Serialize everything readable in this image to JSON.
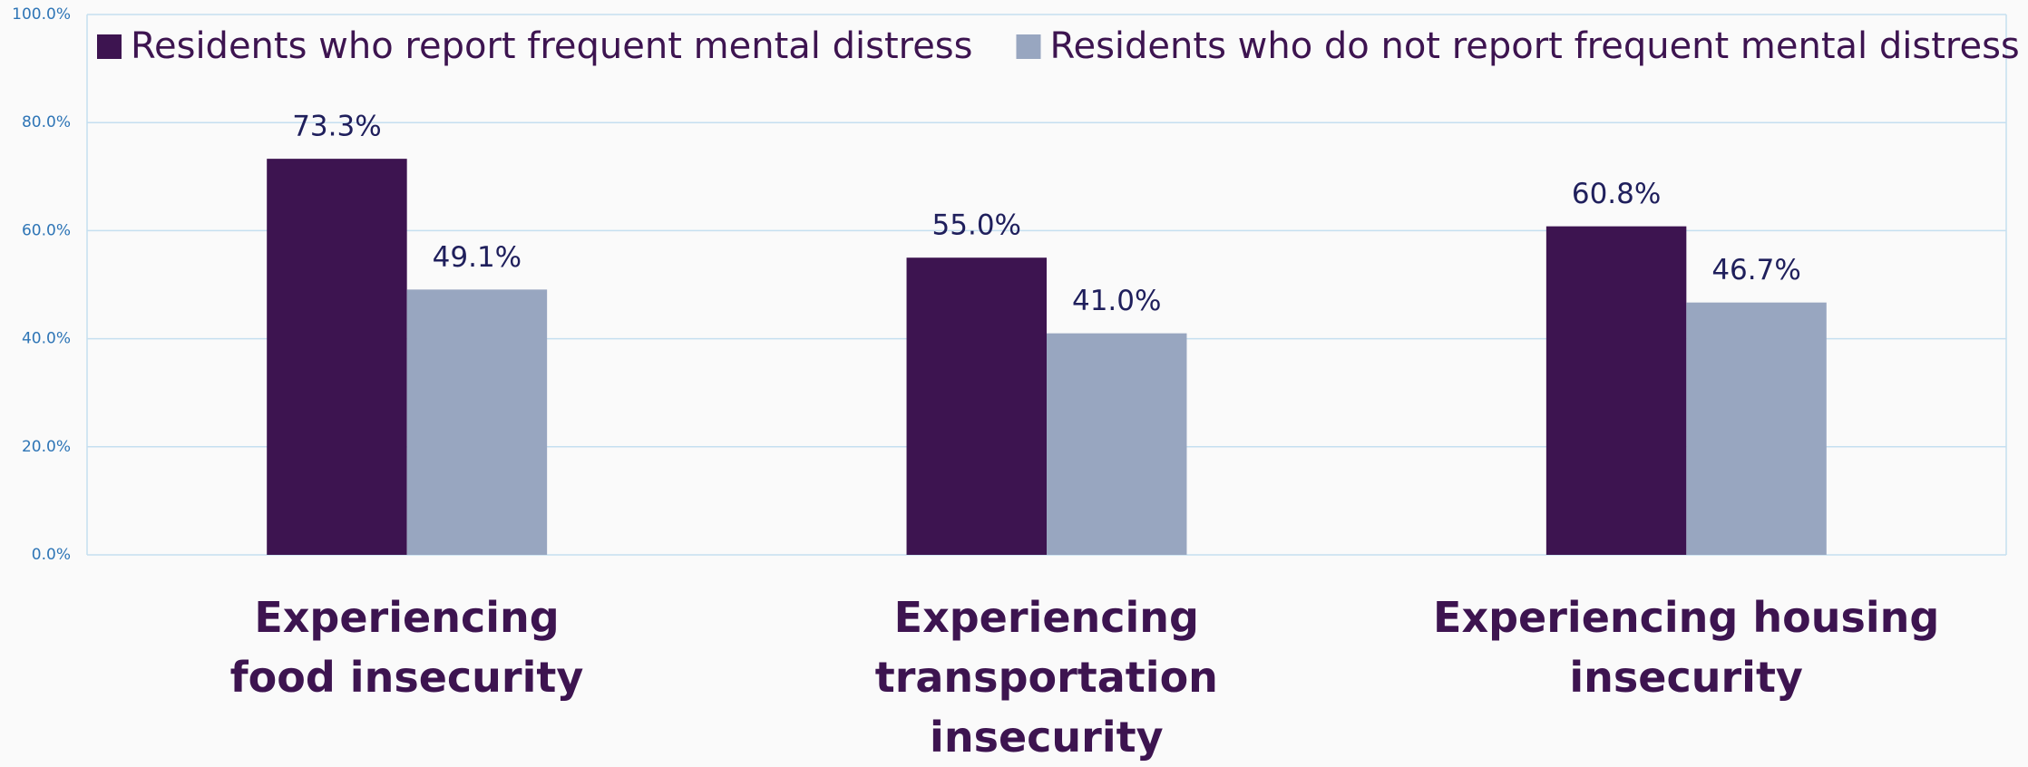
{
  "chart_data": {
    "type": "bar",
    "categories": [
      "Experiencing\nfood insecurity",
      "Experiencing transportation\ninsecurity",
      "Experiencing housing insecurity"
    ],
    "series": [
      {
        "name": "Residents who report frequent mental distress",
        "color": "#3d1450",
        "values": [
          73.3,
          55.0,
          60.8
        ],
        "value_labels": [
          "73.3%",
          "55.0%",
          "60.8%"
        ]
      },
      {
        "name": "Residents who do not report frequent mental distress",
        "color": "#98a6c0",
        "values": [
          49.1,
          41.0,
          46.7
        ],
        "value_labels": [
          "49.1%",
          "41.0%",
          "46.7%"
        ]
      }
    ],
    "ylim": [
      0,
      100
    ],
    "yticks": [
      {
        "value": 0,
        "label": "0.0%"
      },
      {
        "value": 20,
        "label": "20.0%"
      },
      {
        "value": 40,
        "label": "40.0%"
      },
      {
        "value": 60,
        "label": "60.0%"
      },
      {
        "value": 80,
        "label": "80.0%"
      },
      {
        "value": 100,
        "label": "100.0%"
      }
    ],
    "grid": true,
    "legend": "top"
  }
}
